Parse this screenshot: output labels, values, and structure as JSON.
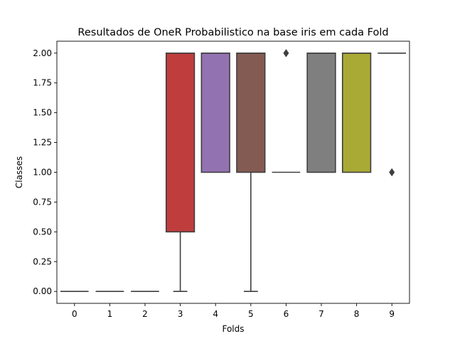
{
  "chart_data": {
    "type": "box",
    "title": "Resultados de OneR Probabilistico na base iris em cada Fold",
    "xlabel": "Folds",
    "ylabel": "Classes",
    "ylim": [
      -0.1,
      2.1
    ],
    "yticks": [
      0.0,
      0.25,
      0.5,
      0.75,
      1.0,
      1.25,
      1.5,
      1.75,
      2.0
    ],
    "ytick_labels": [
      "0.00",
      "0.25",
      "0.50",
      "0.75",
      "1.00",
      "1.25",
      "1.50",
      "1.75",
      "2.00"
    ],
    "categories": [
      "0",
      "1",
      "2",
      "3",
      "4",
      "5",
      "6",
      "7",
      "8",
      "9"
    ],
    "boxes": [
      {
        "category": "0",
        "q1": 0,
        "median": 0,
        "q3": 0,
        "whisker_low": 0,
        "whisker_high": 0,
        "outliers": [],
        "color": "#3274a1"
      },
      {
        "category": "1",
        "q1": 0,
        "median": 0,
        "q3": 0,
        "whisker_low": 0,
        "whisker_high": 0,
        "outliers": [],
        "color": "#e1812c"
      },
      {
        "category": "2",
        "q1": 0,
        "median": 0,
        "q3": 0,
        "whisker_low": 0,
        "whisker_high": 0,
        "outliers": [],
        "color": "#3a923a"
      },
      {
        "category": "3",
        "q1": 0.5,
        "median": 2,
        "q3": 2,
        "whisker_low": 0,
        "whisker_high": 2,
        "outliers": [],
        "color": "#c03d3e"
      },
      {
        "category": "4",
        "q1": 1,
        "median": 2,
        "q3": 2,
        "whisker_low": 1,
        "whisker_high": 2,
        "outliers": [],
        "color": "#9372b2"
      },
      {
        "category": "5",
        "q1": 1,
        "median": 2,
        "q3": 2,
        "whisker_low": 0,
        "whisker_high": 2,
        "outliers": [],
        "color": "#845b53"
      },
      {
        "category": "6",
        "q1": 1,
        "median": 1,
        "q3": 1,
        "whisker_low": 1,
        "whisker_high": 1,
        "outliers": [
          2
        ],
        "color": "#d684bd"
      },
      {
        "category": "7",
        "q1": 1,
        "median": 2,
        "q3": 2,
        "whisker_low": 1,
        "whisker_high": 2,
        "outliers": [],
        "color": "#7f7f7f"
      },
      {
        "category": "8",
        "q1": 1,
        "median": 2,
        "q3": 2,
        "whisker_low": 1,
        "whisker_high": 2,
        "outliers": [],
        "color": "#a9aa35"
      },
      {
        "category": "9",
        "q1": 2,
        "median": 2,
        "q3": 2,
        "whisker_low": 2,
        "whisker_high": 2,
        "outliers": [
          1
        ],
        "color": "#2ea4ad"
      }
    ],
    "grid": false,
    "legend": "none",
    "line_color": "#3f3f3f"
  }
}
